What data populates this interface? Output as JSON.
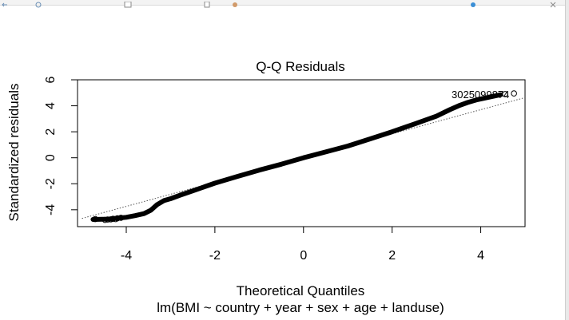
{
  "plot": {
    "title": "Q-Q Residuals",
    "xlabel": "Theoretical Quantiles",
    "ylabel": "Standardized residuals",
    "subtitle": "lm(BMI ~ country + year + sex + age + landuse)",
    "point_labels": "3025099874"
  },
  "chart_data": {
    "type": "scatter",
    "title": "Q-Q Residuals",
    "xlabel": "Theoretical Quantiles",
    "ylabel": "Standardized residuals",
    "subtitle": "lm(BMI ~ country + year + sex + age + landuse)",
    "xlim": [
      -5.1,
      5.0
    ],
    "ylim": [
      -5.3,
      6.0
    ],
    "xticks": [
      -4,
      -2,
      0,
      2,
      4
    ],
    "yticks": [
      -4,
      -2,
      0,
      2,
      4,
      6
    ],
    "reference_line": {
      "style": "dotted",
      "slope": 0.93,
      "intercept": -0.02
    },
    "curve": [
      [
        -4.75,
        -4.75
      ],
      [
        -4.4,
        -4.72
      ],
      [
        -4.2,
        -4.65
      ],
      [
        -4.0,
        -4.58
      ],
      [
        -3.8,
        -4.45
      ],
      [
        -3.6,
        -4.3
      ],
      [
        -3.45,
        -4.05
      ],
      [
        -3.3,
        -3.6
      ],
      [
        -3.15,
        -3.3
      ],
      [
        -3.0,
        -3.15
      ],
      [
        -2.8,
        -2.9
      ],
      [
        -2.5,
        -2.55
      ],
      [
        -2.0,
        -1.95
      ],
      [
        -1.5,
        -1.45
      ],
      [
        -1.0,
        -0.95
      ],
      [
        -0.5,
        -0.5
      ],
      [
        0.0,
        0.0
      ],
      [
        0.5,
        0.45
      ],
      [
        1.0,
        0.9
      ],
      [
        1.5,
        1.45
      ],
      [
        2.0,
        2.0
      ],
      [
        2.5,
        2.6
      ],
      [
        3.0,
        3.2
      ],
      [
        3.3,
        3.7
      ],
      [
        3.5,
        4.0
      ],
      [
        3.7,
        4.25
      ],
      [
        3.9,
        4.45
      ],
      [
        4.1,
        4.6
      ],
      [
        4.3,
        4.75
      ],
      [
        4.45,
        4.85
      ]
    ],
    "tail_points": [
      [
        -4.7,
        -4.72
      ],
      [
        -4.48,
        -4.78
      ],
      [
        -4.42,
        -4.75
      ],
      [
        -4.35,
        -4.74
      ],
      [
        -4.3,
        -4.7
      ],
      [
        -4.24,
        -4.72
      ],
      [
        -4.2,
        -4.66
      ],
      [
        -4.12,
        -4.62
      ],
      [
        4.55,
        4.9
      ],
      [
        4.75,
        4.95
      ]
    ],
    "grid": false
  },
  "colors": {
    "points": "#000000",
    "axis": "#000000",
    "reference_line": "#555555",
    "background": "#ffffff"
  },
  "toolbar_icons": [
    "arrow-icon",
    "refresh-icon",
    "document-icon",
    "page-icon",
    "image-icon",
    "globe-icon",
    "close-icon"
  ]
}
